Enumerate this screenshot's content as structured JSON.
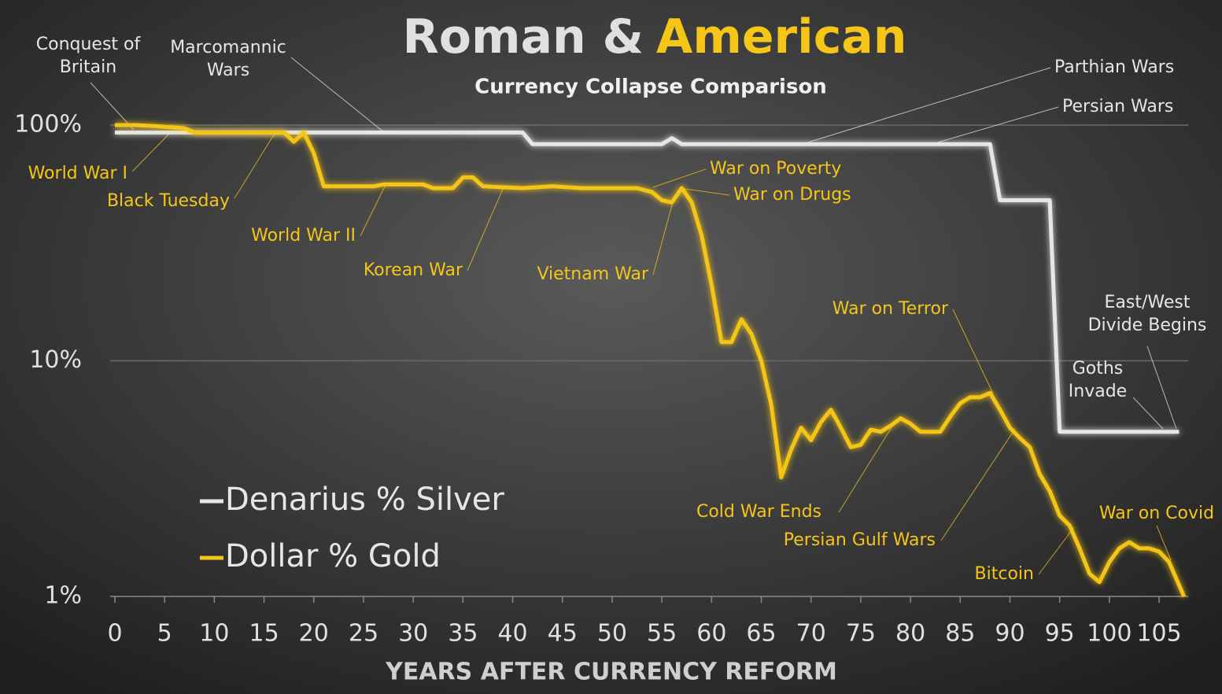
{
  "chart_data": {
    "type": "line",
    "title": [
      "Roman &",
      "American"
    ],
    "subtitle": "Currency Collapse Comparison",
    "xlabel": "YEARS AFTER CURRENCY REFORM",
    "log_y": true,
    "grid": true,
    "legend": "lower left",
    "xlim": [
      0,
      108
    ],
    "xticks": [
      0,
      5,
      10,
      15,
      20,
      25,
      30,
      35,
      40,
      45,
      50,
      55,
      60,
      65,
      70,
      75,
      80,
      85,
      90,
      95,
      100,
      105
    ],
    "ylim": [
      1,
      100
    ],
    "yticks": [
      {
        "value": 1,
        "label": "1%"
      },
      {
        "value": 10,
        "label": "10%"
      },
      {
        "value": 100,
        "label": "100%"
      }
    ],
    "series": [
      {
        "name": "Denarius % Silver",
        "color": "#e6e6e6",
        "x": [
          0,
          41,
          42,
          55,
          56,
          57,
          88,
          89,
          94,
          95,
          107
        ],
        "values": [
          93,
          93,
          83,
          83,
          88,
          83,
          83,
          48,
          48,
          5,
          5
        ],
        "annotations": [
          [
            "Conquest of",
            "Britain"
          ],
          [
            "Marcomannic",
            "Wars"
          ],
          [
            "Parthian Wars"
          ],
          [
            "Persian Wars"
          ],
          [
            "East/West",
            "Divide Begins"
          ],
          [
            "Goths",
            "Invade"
          ]
        ]
      },
      {
        "name": "Dollar % Gold",
        "color": "#f5c518",
        "x": [
          0,
          2,
          4,
          7,
          8,
          11,
          16,
          17,
          18,
          19,
          20,
          21,
          26,
          27,
          31,
          32,
          34,
          35,
          36,
          37,
          41,
          44,
          47,
          52.5,
          54,
          55,
          56,
          57,
          58,
          59,
          60,
          61,
          62,
          63,
          64,
          65,
          66,
          67,
          68,
          69,
          70,
          71,
          72,
          73,
          74,
          75,
          76,
          77,
          78,
          79,
          80,
          81,
          83,
          84,
          85,
          86,
          87,
          88,
          89,
          90,
          91,
          92,
          93,
          94,
          95,
          96,
          97,
          98,
          99,
          100,
          101,
          102,
          103,
          104,
          105,
          106,
          107.5
        ],
        "values": [
          100,
          100,
          99,
          97,
          93,
          93,
          93,
          93,
          85,
          93,
          76,
          55,
          55,
          56,
          56,
          54,
          54,
          60,
          60,
          55,
          54,
          55,
          54,
          54,
          52,
          48,
          47,
          54,
          47,
          34,
          21,
          12,
          12,
          15,
          13,
          10,
          6.5,
          3.2,
          4.2,
          5.2,
          4.6,
          5.5,
          6.2,
          5.2,
          4.3,
          4.4,
          5.1,
          5.0,
          5.3,
          5.7,
          5.4,
          5.0,
          5.0,
          5.8,
          6.6,
          7.0,
          7.0,
          7.3,
          6.2,
          5.2,
          4.7,
          4.3,
          3.3,
          2.8,
          2.2,
          2.0,
          1.6,
          1.25,
          1.15,
          1.4,
          1.6,
          1.7,
          1.6,
          1.6,
          1.55,
          1.4,
          1.0
        ],
        "annotations": [
          [
            "World War I"
          ],
          [
            "Black Tuesday"
          ],
          [
            "World War II"
          ],
          [
            "Korean War"
          ],
          [
            "Vietnam War"
          ],
          [
            "War on Poverty"
          ],
          [
            "War on Drugs"
          ],
          [
            "War on Terror"
          ],
          [
            "Cold War Ends"
          ],
          [
            "Persian Gulf Wars"
          ],
          [
            "Bitcoin"
          ],
          [
            "War on Covid"
          ]
        ]
      }
    ]
  }
}
